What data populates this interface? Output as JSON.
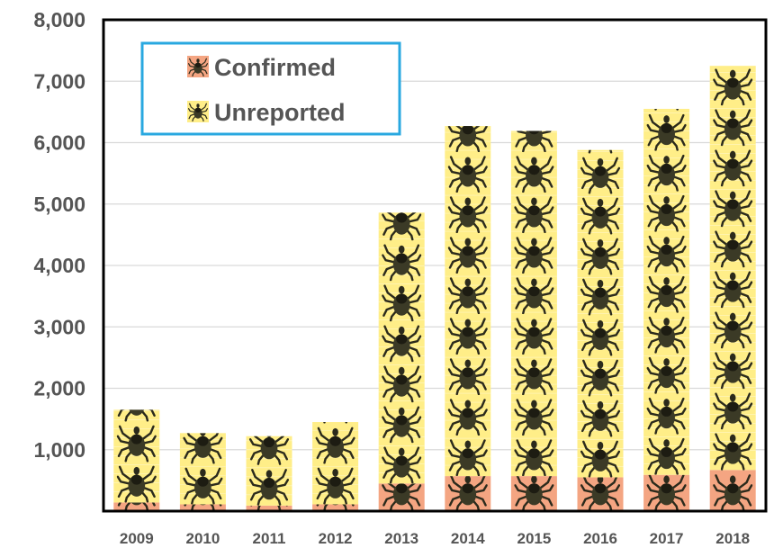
{
  "chart_data": {
    "type": "bar",
    "stacked": true,
    "categories": [
      "2009",
      "2010",
      "2011",
      "2012",
      "2013",
      "2014",
      "2015",
      "2016",
      "2017",
      "2018"
    ],
    "series": [
      {
        "name": "Confirmed",
        "color": "#f4a582",
        "icon": "tick-icon",
        "values": [
          140,
          110,
          90,
          110,
          450,
          570,
          570,
          550,
          590,
          670
        ]
      },
      {
        "name": "Unreported",
        "color": "#ffee88",
        "icon": "tick-icon",
        "values": [
          1510,
          1160,
          1130,
          1340,
          4410,
          5700,
          5620,
          5330,
          5960,
          6580
        ]
      }
    ],
    "ylim": [
      0,
      8000
    ],
    "yticks": [
      1000,
      2000,
      3000,
      4000,
      5000,
      6000,
      7000,
      8000
    ],
    "ytick_labels": [
      "1,000",
      "2,000",
      "3,000",
      "4,000",
      "5,000",
      "6,000",
      "7,000",
      "8,000"
    ],
    "grid": true,
    "legend_position": "top-left",
    "legend_border_color": "#29a8e0",
    "title": "",
    "xlabel": "",
    "ylabel": ""
  }
}
